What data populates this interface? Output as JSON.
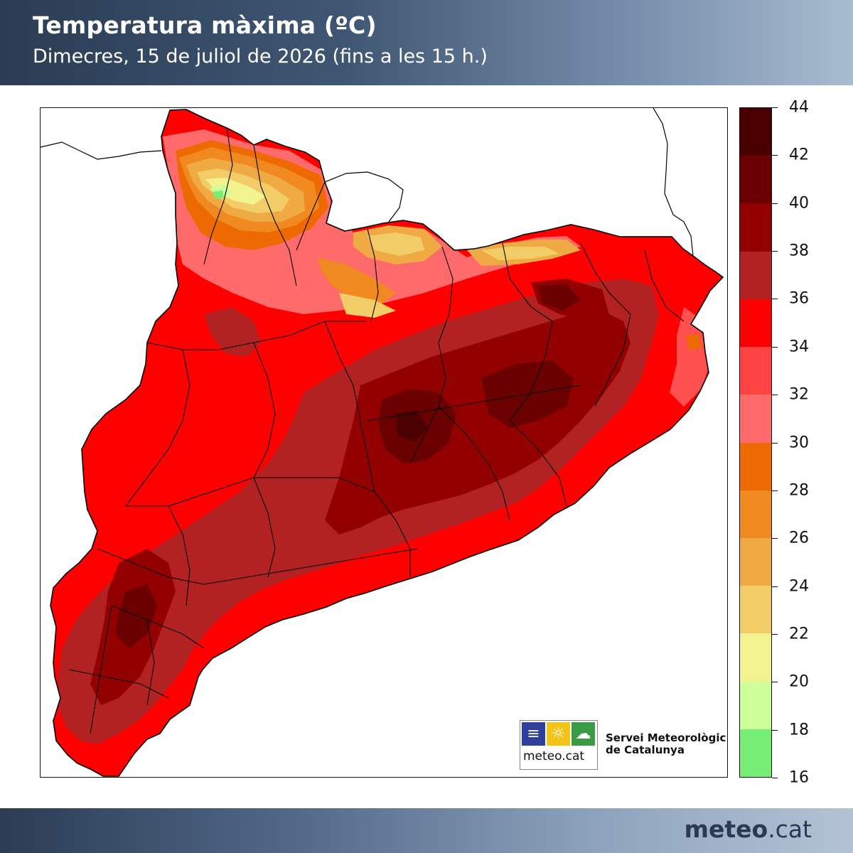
{
  "header": {
    "title": "Temperatura màxima (ºC)",
    "subtitle": "Dimecres, 15 de juliol de 2026 (fins a les 15 h.)"
  },
  "legend": {
    "unit": "ºC",
    "labels": [
      "44",
      "42",
      "40",
      "38",
      "36",
      "34",
      "32",
      "30",
      "28",
      "26",
      "24",
      "22",
      "20",
      "18",
      "16"
    ],
    "bins": [
      {
        "from": 42,
        "to": 44,
        "color": "#4a0000"
      },
      {
        "from": 40,
        "to": 42,
        "color": "#6a0000"
      },
      {
        "from": 38,
        "to": 40,
        "color": "#930000"
      },
      {
        "from": 36,
        "to": 38,
        "color": "#b22222"
      },
      {
        "from": 34,
        "to": 36,
        "color": "#ff0000"
      },
      {
        "from": 32,
        "to": 34,
        "color": "#ff4242"
      },
      {
        "from": 30,
        "to": 32,
        "color": "#ff6a6a"
      },
      {
        "from": 28,
        "to": 30,
        "color": "#ee6a00"
      },
      {
        "from": 26,
        "to": 28,
        "color": "#f08a20"
      },
      {
        "from": 24,
        "to": 26,
        "color": "#f0aa44"
      },
      {
        "from": 22,
        "to": 24,
        "color": "#f2cc66"
      },
      {
        "from": 20,
        "to": 22,
        "color": "#f2f28e"
      },
      {
        "from": 18,
        "to": 20,
        "color": "#ccff99"
      },
      {
        "from": 16,
        "to": 18,
        "color": "#76ee76"
      }
    ]
  },
  "logo": {
    "name": "meteo.cat",
    "org_line1": "Servei Meteorològic",
    "org_line2": "de Catalunya",
    "icons": [
      "waves-icon",
      "sun-icon",
      "cloud-icon"
    ]
  },
  "footer": {
    "brand_bold": "meteo",
    "brand_light": ".cat"
  }
}
